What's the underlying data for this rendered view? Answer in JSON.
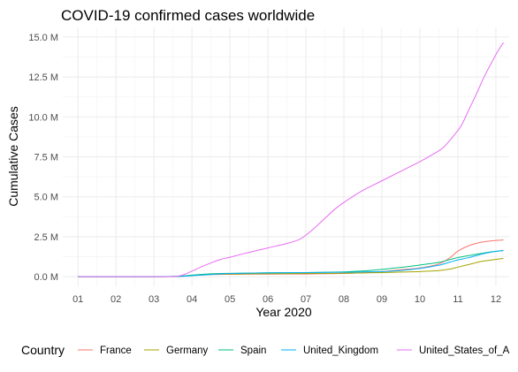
{
  "chart_data": {
    "type": "line",
    "title": "COVID-19 confirmed cases worldwide",
    "xlabel": "Year 2020",
    "ylabel": "Cumulative Cases",
    "x_ticks": [
      "01",
      "02",
      "03",
      "04",
      "05",
      "06",
      "07",
      "08",
      "09",
      "10",
      "11",
      "12"
    ],
    "xlim": [
      0.6,
      12.35
    ],
    "y_ticks": [
      "0.0 M",
      "2.5 M",
      "5.0 M",
      "7.5 M",
      "10.0 M",
      "12.5 M",
      "15.0 M"
    ],
    "ylim": [
      -0.6,
      15.6
    ],
    "y_unit": "millions",
    "grid": true,
    "legend_title": "Country",
    "legend_position": "bottom",
    "series": [
      {
        "name": "France",
        "color": "#F8766D",
        "points": [
          [
            1.0,
            0
          ],
          [
            2.0,
            0
          ],
          [
            3.0,
            0
          ],
          [
            3.7,
            0.02
          ],
          [
            4.0,
            0.09
          ],
          [
            4.5,
            0.13
          ],
          [
            5.0,
            0.15
          ],
          [
            6.0,
            0.16
          ],
          [
            7.0,
            0.17
          ],
          [
            8.0,
            0.2
          ],
          [
            8.5,
            0.25
          ],
          [
            9.0,
            0.32
          ],
          [
            9.5,
            0.44
          ],
          [
            10.0,
            0.55
          ],
          [
            10.5,
            0.8
          ],
          [
            10.8,
            1.2
          ],
          [
            11.0,
            1.6
          ],
          [
            11.3,
            1.95
          ],
          [
            11.6,
            2.15
          ],
          [
            11.9,
            2.25
          ],
          [
            12.2,
            2.3
          ]
        ]
      },
      {
        "name": "Germany",
        "color": "#A3A500",
        "points": [
          [
            1.0,
            0
          ],
          [
            2.0,
            0
          ],
          [
            3.0,
            0
          ],
          [
            3.7,
            0.03
          ],
          [
            4.0,
            0.08
          ],
          [
            4.5,
            0.15
          ],
          [
            5.0,
            0.17
          ],
          [
            6.0,
            0.19
          ],
          [
            7.0,
            0.2
          ],
          [
            8.0,
            0.22
          ],
          [
            9.0,
            0.26
          ],
          [
            9.5,
            0.29
          ],
          [
            10.0,
            0.32
          ],
          [
            10.5,
            0.38
          ],
          [
            10.8,
            0.48
          ],
          [
            11.0,
            0.6
          ],
          [
            11.3,
            0.77
          ],
          [
            11.6,
            0.95
          ],
          [
            11.9,
            1.05
          ],
          [
            12.2,
            1.15
          ]
        ]
      },
      {
        "name": "Spain",
        "color": "#00BF7D",
        "points": [
          [
            1.0,
            0
          ],
          [
            2.0,
            0
          ],
          [
            3.0,
            0
          ],
          [
            3.7,
            0.03
          ],
          [
            4.0,
            0.1
          ],
          [
            4.5,
            0.18
          ],
          [
            5.0,
            0.21
          ],
          [
            6.0,
            0.24
          ],
          [
            7.0,
            0.26
          ],
          [
            8.0,
            0.3
          ],
          [
            8.5,
            0.36
          ],
          [
            9.0,
            0.46
          ],
          [
            9.5,
            0.58
          ],
          [
            10.0,
            0.73
          ],
          [
            10.5,
            0.9
          ],
          [
            10.8,
            1.08
          ],
          [
            11.0,
            1.2
          ],
          [
            11.3,
            1.33
          ],
          [
            11.6,
            1.45
          ],
          [
            11.9,
            1.56
          ],
          [
            12.2,
            1.63
          ]
        ]
      },
      {
        "name": "United_Kingdom",
        "color": "#00B0F6",
        "points": [
          [
            1.0,
            0
          ],
          [
            2.0,
            0
          ],
          [
            3.0,
            0
          ],
          [
            3.7,
            0.02
          ],
          [
            4.0,
            0.06
          ],
          [
            4.5,
            0.14
          ],
          [
            5.0,
            0.2
          ],
          [
            6.0,
            0.24
          ],
          [
            7.0,
            0.26
          ],
          [
            8.0,
            0.28
          ],
          [
            8.5,
            0.3
          ],
          [
            9.0,
            0.32
          ],
          [
            9.5,
            0.39
          ],
          [
            10.0,
            0.52
          ],
          [
            10.5,
            0.72
          ],
          [
            10.8,
            0.92
          ],
          [
            11.0,
            1.05
          ],
          [
            11.3,
            1.2
          ],
          [
            11.6,
            1.4
          ],
          [
            11.9,
            1.55
          ],
          [
            12.2,
            1.65
          ]
        ]
      },
      {
        "name": "United_States_of_A",
        "color": "#E76BF3",
        "points": [
          [
            1.0,
            0
          ],
          [
            2.0,
            0
          ],
          [
            3.0,
            0
          ],
          [
            3.5,
            0.01
          ],
          [
            3.75,
            0.1
          ],
          [
            4.0,
            0.35
          ],
          [
            4.25,
            0.62
          ],
          [
            4.5,
            0.86
          ],
          [
            4.75,
            1.08
          ],
          [
            5.0,
            1.22
          ],
          [
            5.5,
            1.52
          ],
          [
            6.0,
            1.8
          ],
          [
            6.5,
            2.08
          ],
          [
            6.8,
            2.3
          ],
          [
            7.0,
            2.6
          ],
          [
            7.25,
            3.1
          ],
          [
            7.5,
            3.65
          ],
          [
            7.75,
            4.2
          ],
          [
            8.0,
            4.65
          ],
          [
            8.5,
            5.4
          ],
          [
            9.0,
            6.0
          ],
          [
            9.5,
            6.6
          ],
          [
            10.0,
            7.2
          ],
          [
            10.3,
            7.6
          ],
          [
            10.6,
            8.05
          ],
          [
            10.9,
            8.85
          ],
          [
            11.1,
            9.5
          ],
          [
            11.3,
            10.5
          ],
          [
            11.5,
            11.5
          ],
          [
            11.7,
            12.55
          ],
          [
            11.9,
            13.45
          ],
          [
            12.05,
            14.1
          ],
          [
            12.2,
            14.65
          ]
        ]
      }
    ]
  }
}
